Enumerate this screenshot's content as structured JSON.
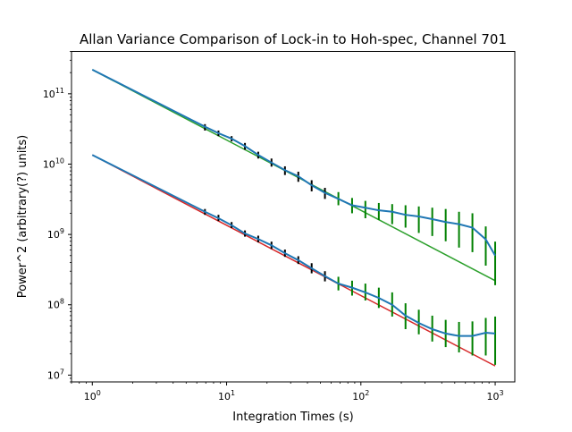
{
  "chart_data": {
    "type": "line",
    "title": "Allan Variance Comparison of Lock-in to Hoh-spec, Channel 701",
    "xlabel": "Integration Times (s)",
    "ylabel": "Power^2 (arbitrary(?) units)",
    "xscale": "log",
    "yscale": "log",
    "xlim": [
      0.7,
      1400
    ],
    "ylim": [
      8000000,
      400000000000
    ],
    "x_ticks": [
      {
        "value": 1,
        "base": "10",
        "exp": "0"
      },
      {
        "value": 10,
        "base": "10",
        "exp": "1"
      },
      {
        "value": 100,
        "base": "10",
        "exp": "2"
      },
      {
        "value": 1000,
        "base": "10",
        "exp": "3"
      }
    ],
    "y_ticks": [
      {
        "value": 10000000,
        "base": "10",
        "exp": "7"
      },
      {
        "value": 100000000,
        "base": "10",
        "exp": "8"
      },
      {
        "value": 1000000000,
        "base": "10",
        "exp": "9"
      },
      {
        "value": 10000000000,
        "base": "10",
        "exp": "10"
      },
      {
        "value": 100000000000,
        "base": "10",
        "exp": "11"
      }
    ],
    "grid": false,
    "legend": "none",
    "colors": {
      "measured": "#1f77b4",
      "ideal_upper": "#2ca02c",
      "ideal_lower": "#d62728",
      "errorbar_dark": "#000000",
      "errorbar_green": "#008000"
    },
    "series": [
      {
        "role": "ideal_upper",
        "x": [
          1,
          1000
        ],
        "y": [
          220000000000,
          220000000
        ]
      },
      {
        "role": "ideal_lower",
        "x": [
          1,
          1000
        ],
        "y": [
          13500000000,
          13500000
        ]
      },
      {
        "role": "measured",
        "x": [
          1,
          6.9,
          8.7,
          10.9,
          13.7,
          17.2,
          21.6,
          27.2,
          34.2,
          43,
          54,
          68,
          86,
          108,
          136,
          171,
          215,
          270,
          340,
          428,
          538,
          677,
          851,
          1000
        ],
        "y": [
          220000000000,
          34000000000,
          27500000000,
          23000000000,
          18000000000,
          13500000000,
          10500000000,
          8200000000,
          6700000000,
          5000000000,
          3900000000,
          3200000000,
          2600000000,
          2400000000,
          2200000000,
          2100000000,
          1900000000,
          1800000000,
          1650000000,
          1500000000,
          1400000000,
          1250000000,
          850000000,
          500000000
        ],
        "err_low": [
          0,
          30000000000,
          25000000000,
          21000000000,
          16000000000,
          12000000000,
          9200000000,
          7000000000,
          5600000000,
          4100000000,
          3200000000,
          2600000000,
          2000000000,
          1700000000,
          1600000000,
          1400000000,
          1250000000,
          1050000000,
          950000000,
          800000000,
          650000000,
          560000000,
          360000000,
          190000000
        ],
        "err_high": [
          0,
          37000000000,
          30000000000,
          25000000000,
          20000000000,
          15000000000,
          12000000000,
          9300000000,
          7800000000,
          5900000000,
          4600000000,
          4000000000,
          3300000000,
          3000000000,
          2800000000,
          2700000000,
          2600000000,
          2500000000,
          2400000000,
          2300000000,
          2100000000,
          2000000000,
          1300000000,
          790000000
        ]
      },
      {
        "role": "measured",
        "x": [
          1,
          6.9,
          8.7,
          10.9,
          13.7,
          17.2,
          21.6,
          27.2,
          34.2,
          43,
          54,
          68,
          86,
          108,
          136,
          171,
          215,
          270,
          340,
          428,
          538,
          677,
          851,
          1000
        ],
        "y": [
          13500000000,
          2100000000,
          1700000000,
          1350000000,
          1030000000,
          860000000,
          700000000,
          540000000,
          430000000,
          330000000,
          255000000,
          200000000,
          175000000,
          150000000,
          125000000,
          100000000,
          70000000,
          55000000,
          45000000,
          39000000,
          36000000,
          36000000,
          40000000,
          39000000
        ],
        "err_low": [
          0,
          1900000000,
          1550000000,
          1230000000,
          930000000,
          770000000,
          620000000,
          480000000,
          380000000,
          280000000,
          215000000,
          160000000,
          135000000,
          115000000,
          90000000,
          68000000,
          45000000,
          38000000,
          30000000,
          25000000,
          21000000,
          19000000,
          19000000,
          14000000
        ],
        "err_high": [
          0,
          2300000000,
          1900000000,
          1500000000,
          1140000000,
          960000000,
          790000000,
          610000000,
          490000000,
          390000000,
          300000000,
          250000000,
          220000000,
          200000000,
          175000000,
          150000000,
          105000000,
          85000000,
          70000000,
          61000000,
          57000000,
          58000000,
          65000000,
          68000000
        ]
      }
    ]
  }
}
